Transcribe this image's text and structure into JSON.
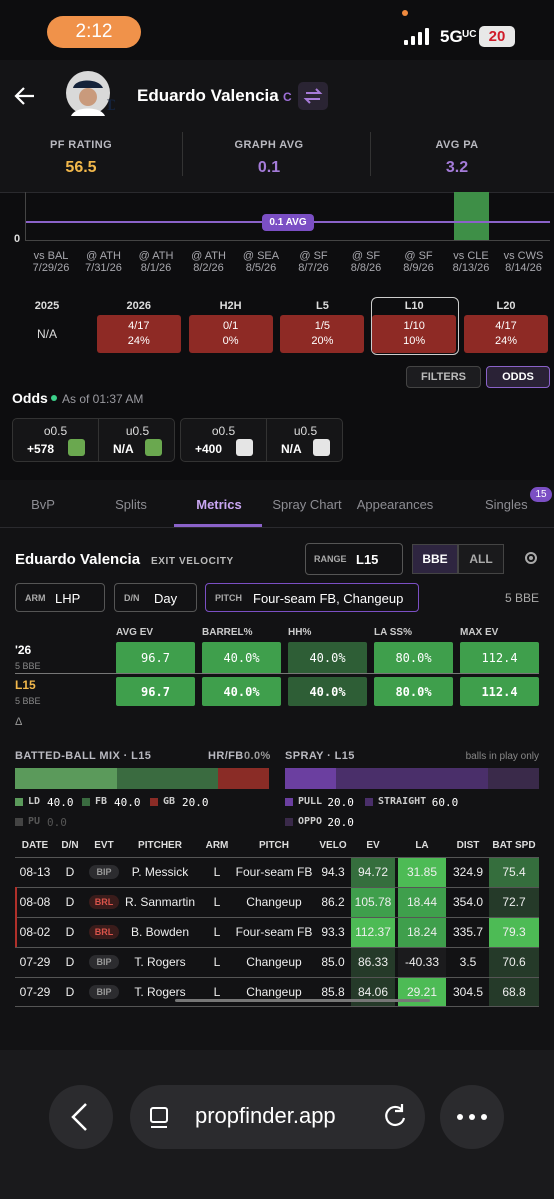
{
  "status_bar": {
    "time": "2:12",
    "network": "5G",
    "network_sub": "UC",
    "battery": "20"
  },
  "header": {
    "player": "Eduardo Valencia",
    "position": "C"
  },
  "ratings": [
    {
      "label": "PF RATING",
      "value": "56.5"
    },
    {
      "label": "GRAPH AVG",
      "value": "0.1"
    },
    {
      "label": "AVG PA",
      "value": "3.2"
    }
  ],
  "graph": {
    "y_label": "0",
    "avg_label": "0.1 AVG",
    "games": [
      {
        "opp": "vs BAL",
        "date": "7/29/26"
      },
      {
        "opp": "@ ATH",
        "date": "7/31/26"
      },
      {
        "opp": "@ ATH",
        "date": "8/1/26"
      },
      {
        "opp": "@ ATH",
        "date": "8/2/26"
      },
      {
        "opp": "@ SEA",
        "date": "8/5/26"
      },
      {
        "opp": "@ SF",
        "date": "8/7/26"
      },
      {
        "opp": "@ SF",
        "date": "8/8/26"
      },
      {
        "opp": "@ SF",
        "date": "8/9/26"
      },
      {
        "opp": "vs CLE",
        "date": "8/13/26"
      },
      {
        "opp": "vs CWS",
        "date": "8/14/26"
      }
    ]
  },
  "splits": [
    {
      "label": "2025",
      "value": "N/A"
    },
    {
      "label": "2026",
      "value": "4/17",
      "pct": "24%"
    },
    {
      "label": "H2H",
      "value": "0/1",
      "pct": "0%"
    },
    {
      "label": "L5",
      "value": "1/5",
      "pct": "20%"
    },
    {
      "label": "L10",
      "value": "1/10",
      "pct": "10%"
    },
    {
      "label": "L20",
      "value": "4/17",
      "pct": "24%"
    }
  ],
  "buttons": {
    "filters": "FILTERS",
    "odds": "ODDS"
  },
  "odds": {
    "title": "Odds",
    "as_of": "As of 01:37 AM",
    "books": [
      {
        "over": "o0.5",
        "over_price": "+578",
        "under": "u0.5",
        "under_price": "N/A"
      },
      {
        "over": "o0.5",
        "over_price": "+400",
        "under": "u0.5",
        "under_price": "N/A"
      }
    ]
  },
  "tabs": {
    "items": [
      "BvP",
      "Splits",
      "Metrics",
      "Spray Chart",
      "Appearances",
      "Singles"
    ],
    "badge": "15"
  },
  "metrics": {
    "player": "Eduardo Valencia",
    "subtitle": "EXIT VELOCITY",
    "range_label": "RANGE",
    "range": "L15",
    "toggle": [
      "BBE",
      "ALL"
    ],
    "filters": [
      {
        "label": "ARM",
        "value": "LHP"
      },
      {
        "label": "D/N",
        "value": "Day"
      },
      {
        "label": "PITCH",
        "value": "Four-seam FB, Changeup"
      }
    ],
    "bbe_count": "5 BBE"
  },
  "summary": {
    "columns": [
      "AVG EV",
      "BARREL%",
      "HH%",
      "LA SS%",
      "MAX EV"
    ],
    "rows": [
      {
        "label": "'26",
        "sub": "5 BBE",
        "values": [
          "96.7",
          "40.0%",
          "40.0%",
          "80.0%",
          "112.4"
        ]
      },
      {
        "label": "L15",
        "sub": "5 BBE",
        "values": [
          "96.7",
          "40.0%",
          "40.0%",
          "80.0%",
          "112.4"
        ]
      }
    ],
    "delta": "Δ"
  },
  "batted_ball": {
    "title": "BATTED-BALL MIX · L15",
    "hrfb_label": "HR/FB",
    "hrfb": "0.0%",
    "legend": [
      {
        "label": "LD",
        "value": "40.0"
      },
      {
        "label": "FB",
        "value": "40.0"
      },
      {
        "label": "GB",
        "value": "20.0"
      },
      {
        "label": "PU",
        "value": "0.0"
      }
    ]
  },
  "spray": {
    "title": "SPRAY · L15",
    "note": "balls in play only",
    "legend": [
      {
        "label": "PULL",
        "value": "20.0"
      },
      {
        "label": "STRAIGHT",
        "value": "60.0"
      },
      {
        "label": "OPPO",
        "value": "20.0"
      }
    ]
  },
  "table": {
    "columns": [
      "DATE",
      "D/N",
      "EVT",
      "PITCHER",
      "ARM",
      "PITCH",
      "VELO",
      "EV",
      "LA",
      "DIST",
      "BAT SPD"
    ],
    "rows": [
      [
        "08-13",
        "D",
        "BIP",
        "P. Messick",
        "L",
        "Four-seam FB",
        "94.3",
        "94.72",
        "31.85",
        "324.9",
        "75.4"
      ],
      [
        "08-08",
        "D",
        "BRL",
        "R. Sanmartin",
        "L",
        "Changeup",
        "86.2",
        "105.78",
        "18.44",
        "354.0",
        "72.7"
      ],
      [
        "08-02",
        "D",
        "BRL",
        "B. Bowden",
        "L",
        "Four-seam FB",
        "93.3",
        "112.37",
        "18.24",
        "335.7",
        "79.3"
      ],
      [
        "07-29",
        "D",
        "BIP",
        "T. Rogers",
        "L",
        "Changeup",
        "85.0",
        "86.33",
        "-40.33",
        "3.5",
        "70.6"
      ],
      [
        "07-29",
        "D",
        "BIP",
        "T. Rogers",
        "L",
        "Changeup",
        "85.8",
        "84.06",
        "29.21",
        "304.5",
        "68.8"
      ]
    ]
  },
  "browser": {
    "url": "propfinder.app"
  }
}
